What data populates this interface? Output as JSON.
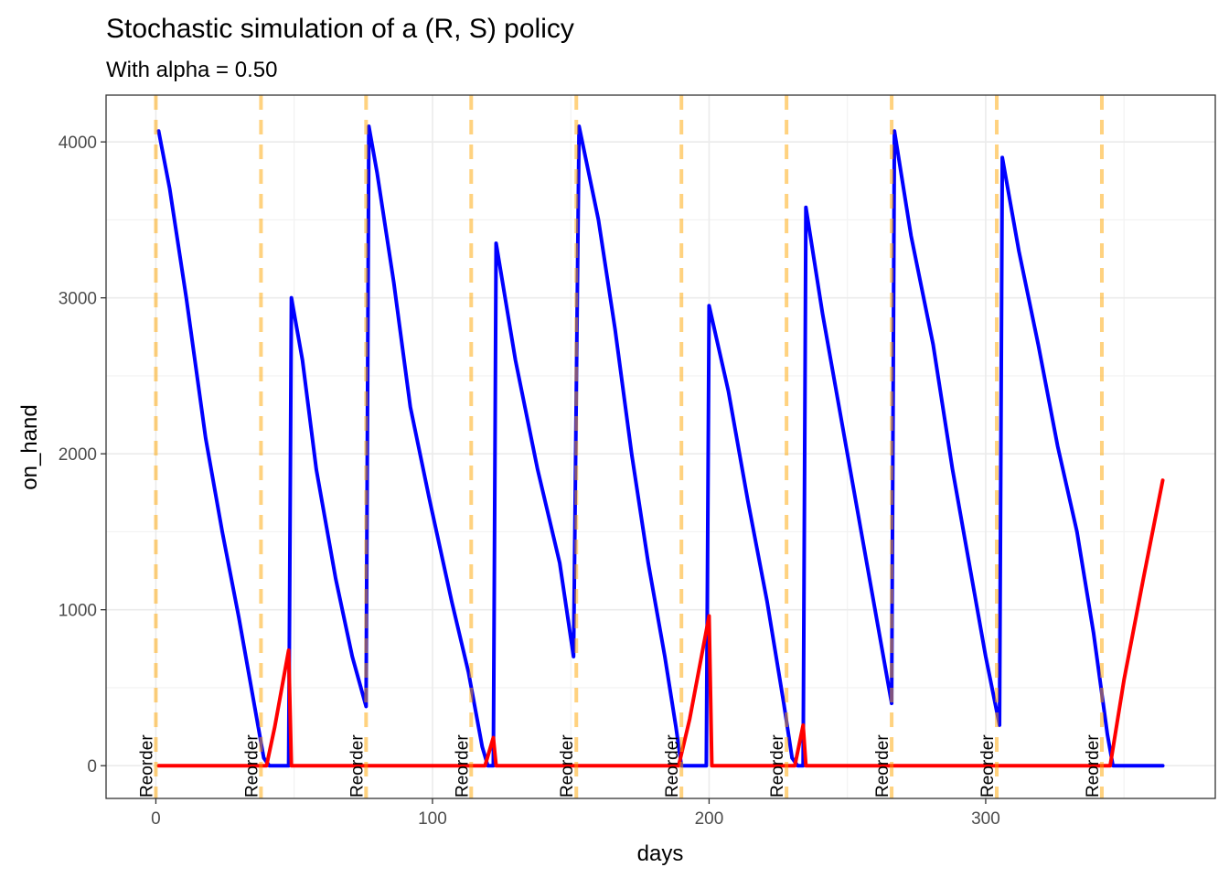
{
  "chart_data": {
    "type": "line",
    "title": "Stochastic simulation of a (R, S) policy",
    "subtitle": "With alpha = 0.50",
    "xlabel": "days",
    "ylabel": "on_hand",
    "xlim": [
      -18,
      383
    ],
    "ylim": [
      -210,
      4300
    ],
    "x_ticks": [
      0,
      100,
      200,
      300
    ],
    "y_ticks": [
      0,
      1000,
      2000,
      3000,
      4000
    ],
    "x_tick_labels": [
      "0",
      "100",
      "200",
      "300"
    ],
    "y_tick_labels": [
      "0",
      "1000",
      "2000",
      "3000",
      "4000"
    ],
    "grid": true,
    "legend": "none",
    "reorder_days": [
      0,
      38,
      76,
      114,
      152,
      190,
      228,
      266,
      304,
      342
    ],
    "reorder_label": "Reorder",
    "series": [
      {
        "color": "#0000ff",
        "values": [
          [
            1,
            4070
          ],
          [
            5,
            3700
          ],
          [
            11,
            3000
          ],
          [
            18,
            2100
          ],
          [
            24,
            1500
          ],
          [
            30,
            950
          ],
          [
            34,
            550
          ],
          [
            39,
            50
          ],
          [
            41,
            0
          ],
          [
            48,
            0
          ],
          [
            49,
            3000
          ],
          [
            53,
            2600
          ],
          [
            58,
            1900
          ],
          [
            65,
            1200
          ],
          [
            71,
            700
          ],
          [
            76,
            380
          ],
          [
            77,
            4100
          ],
          [
            80,
            3800
          ],
          [
            86,
            3100
          ],
          [
            92,
            2300
          ],
          [
            99,
            1700
          ],
          [
            107,
            1050
          ],
          [
            113,
            600
          ],
          [
            118,
            120
          ],
          [
            120,
            0
          ],
          [
            122,
            0
          ],
          [
            123,
            3350
          ],
          [
            130,
            2600
          ],
          [
            138,
            1900
          ],
          [
            146,
            1300
          ],
          [
            151,
            700
          ],
          [
            153,
            4100
          ],
          [
            160,
            3500
          ],
          [
            166,
            2800
          ],
          [
            172,
            2000
          ],
          [
            178,
            1300
          ],
          [
            184,
            700
          ],
          [
            188,
            250
          ],
          [
            190,
            0
          ],
          [
            199,
            0
          ],
          [
            200,
            2950
          ],
          [
            207,
            2400
          ],
          [
            214,
            1700
          ],
          [
            221,
            1050
          ],
          [
            227,
            400
          ],
          [
            230,
            50
          ],
          [
            232,
            0
          ],
          [
            234,
            0
          ],
          [
            235,
            3580
          ],
          [
            241,
            2900
          ],
          [
            248,
            2200
          ],
          [
            255,
            1500
          ],
          [
            261,
            900
          ],
          [
            266,
            400
          ],
          [
            267,
            4070
          ],
          [
            273,
            3400
          ],
          [
            281,
            2700
          ],
          [
            288,
            1900
          ],
          [
            294,
            1300
          ],
          [
            300,
            700
          ],
          [
            305,
            260
          ],
          [
            306,
            3900
          ],
          [
            312,
            3300
          ],
          [
            319,
            2700
          ],
          [
            326,
            2050
          ],
          [
            333,
            1500
          ],
          [
            339,
            850
          ],
          [
            344,
            200
          ],
          [
            346,
            0
          ],
          [
            364,
            0
          ]
        ]
      },
      {
        "color": "#ff0000",
        "values": [
          [
            1,
            0
          ],
          [
            40,
            0
          ],
          [
            43,
            250
          ],
          [
            48,
            740
          ],
          [
            49,
            0
          ],
          [
            119,
            0
          ],
          [
            122,
            180
          ],
          [
            123,
            0
          ],
          [
            189,
            0
          ],
          [
            193,
            300
          ],
          [
            200,
            960
          ],
          [
            201,
            0
          ],
          [
            231,
            0
          ],
          [
            234,
            260
          ],
          [
            235,
            0
          ],
          [
            345,
            0
          ],
          [
            350,
            550
          ],
          [
            357,
            1200
          ],
          [
            364,
            1830
          ]
        ]
      }
    ]
  }
}
